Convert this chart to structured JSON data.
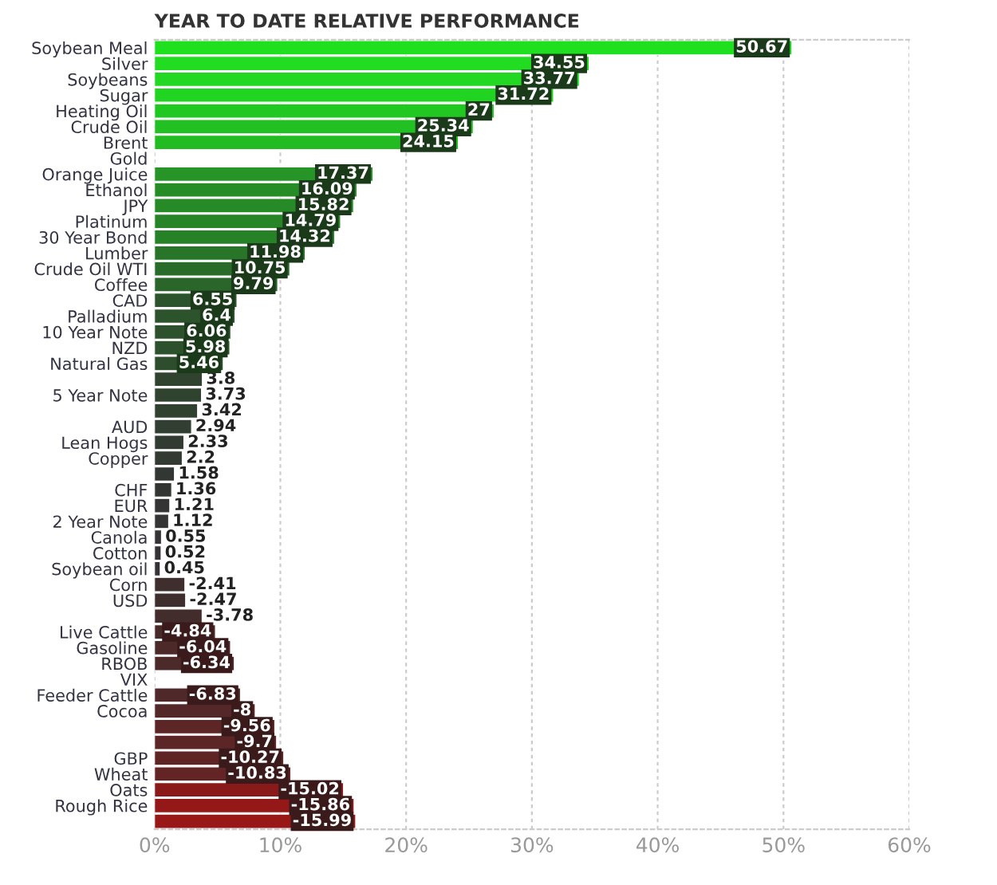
{
  "chart_data": {
    "type": "bar",
    "orientation": "horizontal",
    "title": "YEAR TO DATE RELATIVE PERFORMANCE",
    "categories": [
      "Soybean Meal",
      "Silver",
      "Soybeans",
      "Sugar",
      "Heating Oil",
      "Crude Oil",
      "Brent",
      "Gold",
      "Orange Juice",
      "Ethanol",
      "JPY",
      "Platinum",
      "30 Year Bond",
      "Lumber",
      "Crude Oil WTI",
      "Coffee",
      "CAD",
      "Palladium",
      "10 Year Note",
      "NZD",
      "Natural Gas",
      null,
      "5 Year Note",
      null,
      "AUD",
      "Lean Hogs",
      "Copper",
      null,
      "CHF",
      "EUR",
      "2 Year Note",
      "Canola",
      "Cotton",
      "Soybean oil",
      "Corn",
      "USD",
      null,
      "Live Cattle",
      "Gasoline",
      "RBOB",
      "VIX",
      "Feeder Cattle",
      "Cocoa",
      null,
      null,
      "GBP",
      "Wheat",
      "Oats",
      "Rough Rice",
      null
    ],
    "values": [
      50.67,
      34.55,
      33.77,
      31.72,
      27,
      25.34,
      24.15,
      null,
      17.37,
      16.09,
      15.82,
      14.79,
      14.32,
      11.98,
      10.75,
      9.79,
      6.55,
      6.4,
      6.06,
      5.98,
      5.46,
      3.8,
      3.73,
      3.42,
      2.94,
      2.33,
      2.2,
      1.58,
      1.36,
      1.21,
      1.12,
      0.55,
      0.52,
      0.45,
      -2.41,
      -2.47,
      -3.78,
      -4.84,
      -6.04,
      -6.34,
      null,
      -6.83,
      -8,
      -9.56,
      -9.7,
      -10.27,
      -10.83,
      -15.02,
      -15.86,
      -15.99
    ],
    "base": [
      0,
      0,
      0,
      0,
      0,
      0,
      0,
      null,
      0,
      0,
      0,
      0,
      0,
      0,
      0,
      0,
      0,
      0,
      0,
      0,
      0,
      0,
      0,
      0,
      0,
      0,
      0,
      0,
      0,
      0,
      0,
      0,
      0,
      0,
      2.41,
      2.47,
      3.78,
      4.84,
      6.04,
      6.34,
      null,
      6.83,
      8,
      9.56,
      9.7,
      10.27,
      10.83,
      15.02,
      15.86,
      15.99
    ],
    "colors": [
      "#1fe01f",
      "#22dc22",
      "#22d822",
      "#22d422",
      "#22c822",
      "#22c022",
      "#22bb22",
      "#22bb22",
      "#269426",
      "#268c26",
      "#268a26",
      "#278427",
      "#278127",
      "#287428",
      "#296c29",
      "#2a662a",
      "#2c542c",
      "#2c532c",
      "#2d512d",
      "#2d502d",
      "#2d4d2d",
      "#2f432f",
      "#2f432f",
      "#304130",
      "#313e31",
      "#323b32",
      "#323a32",
      "#333733",
      "#333533",
      "#343434",
      "#343434",
      "#353335",
      "#353335",
      "#363336",
      "#3e2e2e",
      "#3e2e2e",
      "#432c2c",
      "#472b2b",
      "#4c2a2a",
      "#4d2a2a",
      "#4d2a2a",
      "#4f2929",
      "#542828",
      "#5c2626",
      "#5c2626",
      "#5f2525",
      "#622424",
      "#8a1a1a",
      "#941818",
      "#981818"
    ],
    "data_labels": true,
    "xlim": [
      0,
      60
    ],
    "xticks": [
      {
        "value": 0,
        "label": "0%"
      },
      {
        "value": 10,
        "label": "10%"
      },
      {
        "value": 20,
        "label": "20%"
      },
      {
        "value": 30,
        "label": "30%"
      },
      {
        "value": 40,
        "label": "40%"
      },
      {
        "value": 50,
        "label": "50%"
      },
      {
        "value": 60,
        "label": "60%"
      }
    ],
    "grid": "x",
    "legend": false
  }
}
